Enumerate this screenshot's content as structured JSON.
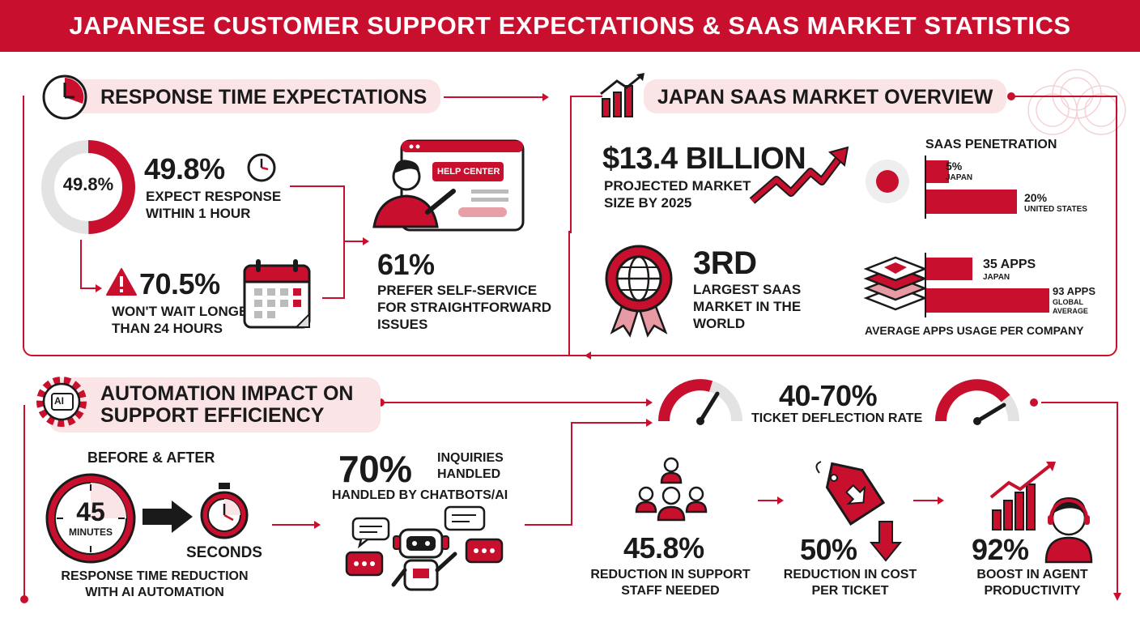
{
  "banner": {
    "title": "JAPANESE CUSTOMER SUPPORT EXPECTATIONS & SAAS MARKET STATISTICS"
  },
  "response": {
    "title": "RESPONSE TIME EXPECTATIONS",
    "donut_label": "49.8%",
    "donut_fill": 0.498,
    "stat1_value": "49.8%",
    "stat1_text": "EXPECT RESPONSE WITHIN 1 HOUR",
    "stat2_value": "70.5%",
    "stat2_text": "WON'T WAIT LONGER THAN 24 HOURS",
    "stat3_value": "61%",
    "stat3_text": "PREFER SELF-SERVICE FOR STRAIGHTFORWARD ISSUES",
    "help_center": "HELP CENTER"
  },
  "saas": {
    "title": "JAPAN SAAS MARKET OVERVIEW",
    "market_value": "$13.4 BILLION",
    "market_text": "PROJECTED MARKET SIZE BY 2025",
    "rank_value": "3rd",
    "rank_text": "LARGEST SAAS MARKET IN THE WORLD",
    "penetration_title": "SAAS PENETRATION",
    "penetration": [
      {
        "value": "5%",
        "label": "JAPAN",
        "fraction": 0.05
      },
      {
        "value": "20%",
        "label": "UNITED STATES",
        "fraction": 0.2
      }
    ],
    "apps": [
      {
        "value": "35 APPS",
        "label": "JAPAN",
        "count": 35
      },
      {
        "value": "93 APPS",
        "label": "GLOBAL AVERAGE",
        "count": 93
      }
    ],
    "apps_caption": "AVERAGE APPS USAGE PER COMPANY"
  },
  "automation": {
    "title_line1": "AUTOMATION IMPACT ON",
    "title_line2": "SUPPORT EFFICIENCY",
    "ai_icon_label": "AI",
    "before_after": "BEFORE & AFTER",
    "minutes_value": "45",
    "minutes_label": "MINUTES",
    "seconds_label": "SECONDS",
    "reduction_text": "RESPONSE TIME REDUCTION WITH AI AUTOMATION",
    "chatbot_value": "70%",
    "chatbot_side": "INQUIRIES HANDLED",
    "chatbot_text": "HANDLED BY CHATBOTS/AI",
    "deflection_value": "40-70%",
    "deflection_text": "TICKET DEFLECTION RATE",
    "staff_value": "45.8%",
    "staff_text": "REDUCTION IN SUPPORT STAFF NEEDED",
    "cost_value": "50%",
    "cost_text": "REDUCTION IN COST PER TICKET",
    "productivity_value": "92%",
    "productivity_text": "BOOST IN AGENT PRODUCTIVITY"
  }
}
